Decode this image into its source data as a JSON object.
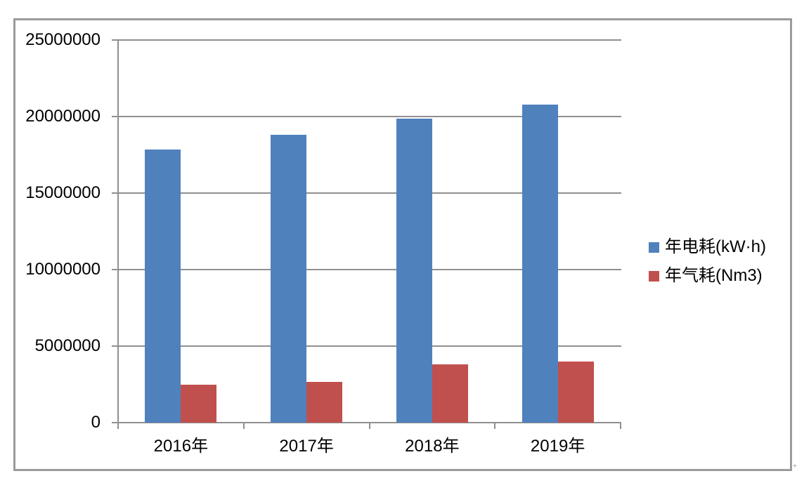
{
  "chart_data": {
    "type": "bar",
    "title": "",
    "categories": [
      "2016年",
      "2017年",
      "2018年",
      "2019年"
    ],
    "series": [
      {
        "name": "年电耗(kW·h)",
        "color": "#4F81BD",
        "values": [
          17850000,
          18800000,
          19850000,
          20800000
        ]
      },
      {
        "name": "年气耗(Nm3)",
        "color": "#C0504D",
        "values": [
          2500000,
          2650000,
          3800000,
          4000000
        ]
      }
    ],
    "xlabel": "",
    "ylabel": "",
    "ylim": [
      0,
      25000000
    ],
    "y_tick_interval": 5000000,
    "y_tick_labels": [
      "25000000",
      "20000000",
      "15000000",
      "10000000",
      "5000000",
      "0"
    ],
    "grid": true,
    "legend_position": "right"
  },
  "colors": {
    "grid": "#8F8F8F",
    "axis": "#8F8F8F",
    "frame_border": "#9B9B9B",
    "text": "#000000",
    "background": "#FFFFFF"
  },
  "decor": {
    "stray_mark": "+"
  }
}
